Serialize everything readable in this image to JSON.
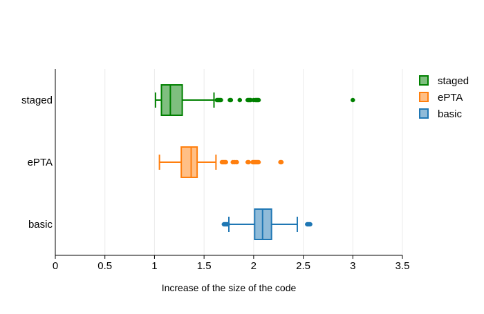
{
  "chart_data": {
    "type": "box",
    "orientation": "horizontal",
    "title": "",
    "xlabel": "Increase of the size of the code",
    "ylabel": "",
    "xlim": [
      0,
      3.5
    ],
    "x_ticks": [
      0,
      0.5,
      1,
      1.5,
      2,
      2.5,
      3,
      3.5
    ],
    "x_tick_labels": [
      "0",
      "0.5",
      "1",
      "1.5",
      "2",
      "2.5",
      "3",
      "3.5"
    ],
    "grid": {
      "vertical": true,
      "horizontal": false
    },
    "legend": {
      "placement": "top-right"
    },
    "categories": [
      "staged",
      "ePTA",
      "basic"
    ],
    "series": [
      {
        "name": "staged",
        "color": "#008000",
        "fill": "#7fbf7f",
        "whisker_low": 1.01,
        "q1": 1.07,
        "median": 1.16,
        "q3": 1.28,
        "whisker_high": 1.6,
        "outliers": [
          1.63,
          1.64,
          1.65,
          1.66,
          1.67,
          1.76,
          1.77,
          1.86,
          1.94,
          1.95,
          1.96,
          1.97,
          2.0,
          2.02,
          2.03,
          2.04,
          2.05,
          3.0
        ]
      },
      {
        "name": "ePTA",
        "color": "#ff7f0e",
        "fill": "#ffbf86",
        "whisker_low": 1.05,
        "q1": 1.27,
        "median": 1.37,
        "q3": 1.43,
        "whisker_high": 1.62,
        "outliers": [
          1.68,
          1.69,
          1.7,
          1.71,
          1.72,
          1.79,
          1.81,
          1.83,
          1.94,
          1.95,
          1.99,
          2.0,
          2.01,
          2.02,
          2.03,
          2.04,
          2.05,
          2.27,
          2.28
        ]
      },
      {
        "name": "basic",
        "color": "#1f77b4",
        "fill": "#8fbbd9",
        "whisker_low": 1.75,
        "q1": 2.01,
        "median": 2.09,
        "q3": 2.18,
        "whisker_high": 2.44,
        "outliers": [
          1.7,
          1.71,
          1.72,
          1.73,
          1.74,
          2.54,
          2.55,
          2.56,
          2.57
        ]
      }
    ]
  }
}
